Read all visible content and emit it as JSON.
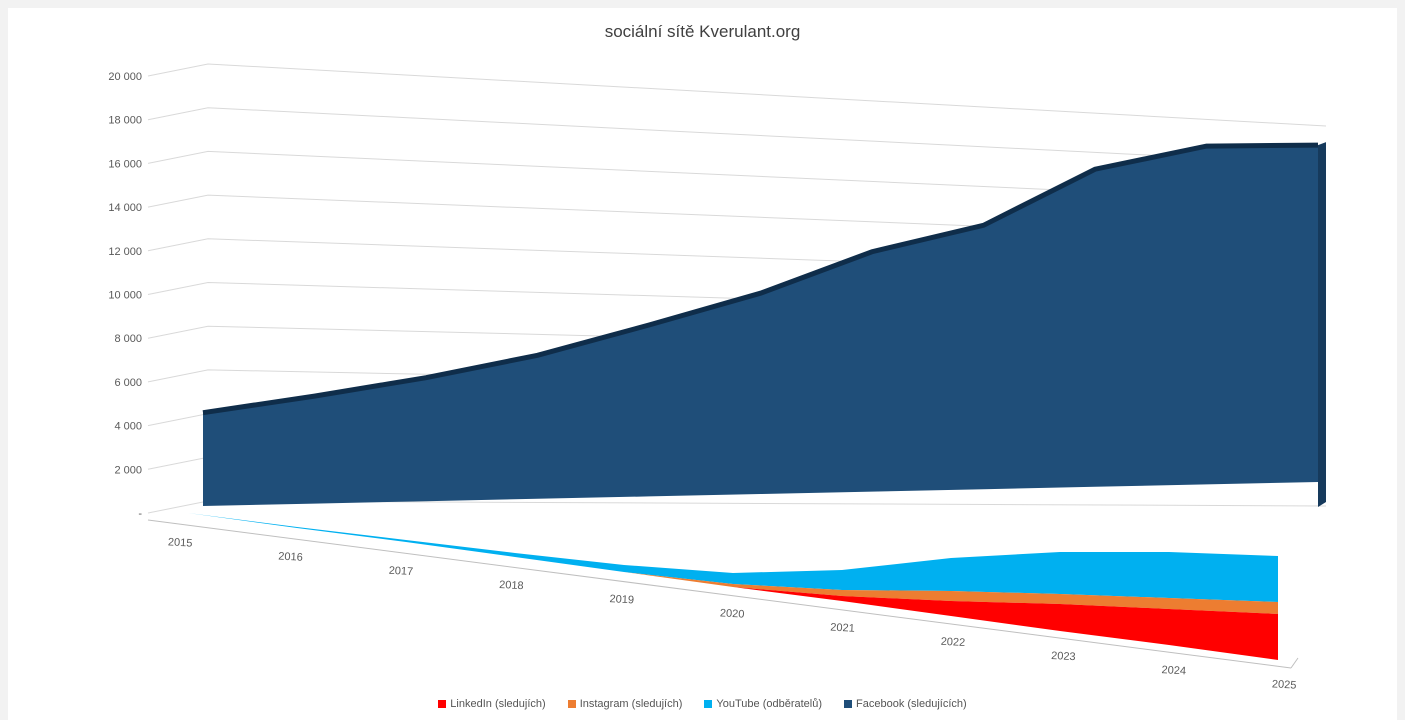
{
  "chart_data": {
    "type": "area",
    "title": "sociální sítě Kverulant.org",
    "x": [
      "2015",
      "2016",
      "2017",
      "2018",
      "2019",
      "2020",
      "2021",
      "2022",
      "2023",
      "2024",
      "2025"
    ],
    "ylim": [
      0,
      20000
    ],
    "y_ticks": [
      "-",
      "2 000",
      "4 000",
      "6 000",
      "8 000",
      "10 000",
      "12 000",
      "14 000",
      "16 000",
      "18 000",
      "20 000"
    ],
    "grid": true,
    "legend_position": "bottom",
    "series": [
      {
        "name": "LinkedIn (sledujích)",
        "color": "#ff0000",
        "values": [
          0,
          0,
          0,
          0,
          0,
          0,
          250,
          700,
          1200,
          1650,
          2100
        ]
      },
      {
        "name": "Instagram (sledujích)",
        "color": "#ed7d31",
        "values": [
          0,
          0,
          0,
          0,
          0,
          100,
          250,
          450,
          480,
          500,
          550
        ]
      },
      {
        "name": "YouTube (odběratelů)",
        "color": "#00b0f0",
        "values": [
          0,
          50,
          100,
          200,
          300,
          500,
          900,
          1500,
          1900,
          2100,
          2100
        ]
      },
      {
        "name": "Facebook (sledujících)",
        "color": "#1f4e79",
        "values": [
          4300,
          5000,
          5800,
          6800,
          8200,
          9700,
          11700,
          13000,
          15800,
          17000,
          17100
        ]
      }
    ]
  }
}
